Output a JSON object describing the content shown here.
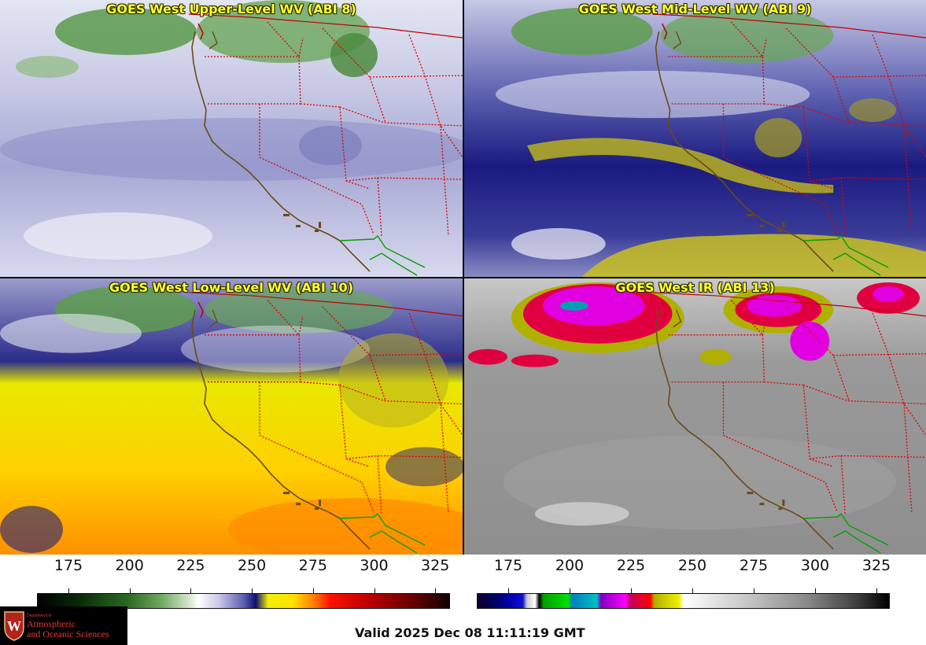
{
  "panels": {
    "upper_level_wv": {
      "title": "GOES West Upper-Level WV (ABI 8)"
    },
    "mid_level_wv": {
      "title": "GOES West Mid-Level WV (ABI 9)"
    },
    "low_level_wv": {
      "title": "GOES West Low-Level WV (ABI 10)"
    },
    "ir": {
      "title": "GOES West IR (ABI 13)"
    }
  },
  "colorbars": {
    "wv": {
      "ticks": [
        "175",
        "200",
        "225",
        "250",
        "275",
        "300",
        "325"
      ]
    },
    "ir": {
      "ticks": [
        "175",
        "200",
        "225",
        "250",
        "275",
        "300",
        "325"
      ]
    }
  },
  "footer": {
    "valid_time": "Valid 2025 Dec 08 11:11:19 GMT",
    "logo": {
      "department": "Department of",
      "line1": "Atmospheric",
      "line2": "and Oceanic Sciences"
    }
  },
  "colors": {
    "title_text": "#ffff33",
    "state_borders": "#e00000",
    "coastline": "#6b4a1a",
    "mexico_border": "#00a000"
  }
}
